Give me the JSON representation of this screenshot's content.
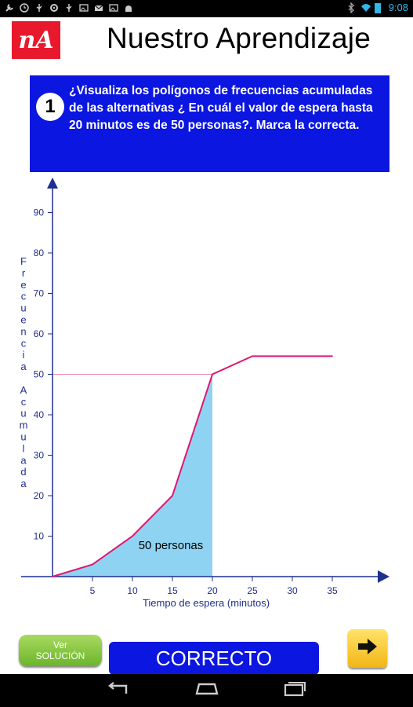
{
  "status_bar": {
    "time": "9:08",
    "icons": [
      "wrench-icon",
      "clock-icon",
      "usb-icon",
      "settings-icon",
      "usb-icon",
      "image-icon",
      "mail-icon",
      "image-icon",
      "android-icon",
      "bluetooth-icon",
      "wifi-icon",
      "battery-icon"
    ]
  },
  "header": {
    "logo_text": "nA",
    "title": "Nuestro Aprendizaje"
  },
  "question": {
    "number": "1",
    "text": "¿Visualiza los polígonos de frecuencias acumuladas de las alternativas ¿ En cuál el valor de espera hasta 20 minutos es de 50 personas?. Marca la correcta."
  },
  "chart_data": {
    "type": "area",
    "xlabel": "Tiempo de espera (minutos)",
    "ylabel": "Frecuencia Acumulada",
    "x_ticks": [
      "5",
      "10",
      "15",
      "20",
      "25",
      "30",
      "35"
    ],
    "y_ticks": [
      "10",
      "20",
      "30",
      "40",
      "50",
      "60",
      "70",
      "80",
      "90"
    ],
    "xlim": [
      0,
      41
    ],
    "ylim": [
      0,
      95
    ],
    "series": [
      {
        "x": [
          0,
          5,
          10,
          15,
          20,
          25,
          35
        ],
        "y": [
          0,
          3,
          10,
          20,
          50,
          54.5,
          54.5
        ]
      }
    ],
    "shaded_area": {
      "x_from": 0,
      "x_to": 20
    },
    "reference_line_y": 50,
    "annotation": "50 personas",
    "colors": {
      "line": "#e0166f",
      "fill": "#8fd3f2",
      "axis": "#1f2f8f",
      "reference": "#f08cb0"
    }
  },
  "buttons": {
    "ver_line1": "Ver",
    "ver_line2": "SOLUCIÓN",
    "correcto": "CORRECTO",
    "next_icon": "arrow-right-icon"
  },
  "navigation": {
    "icons": [
      "back-icon",
      "home-icon",
      "recent-apps-icon"
    ]
  }
}
